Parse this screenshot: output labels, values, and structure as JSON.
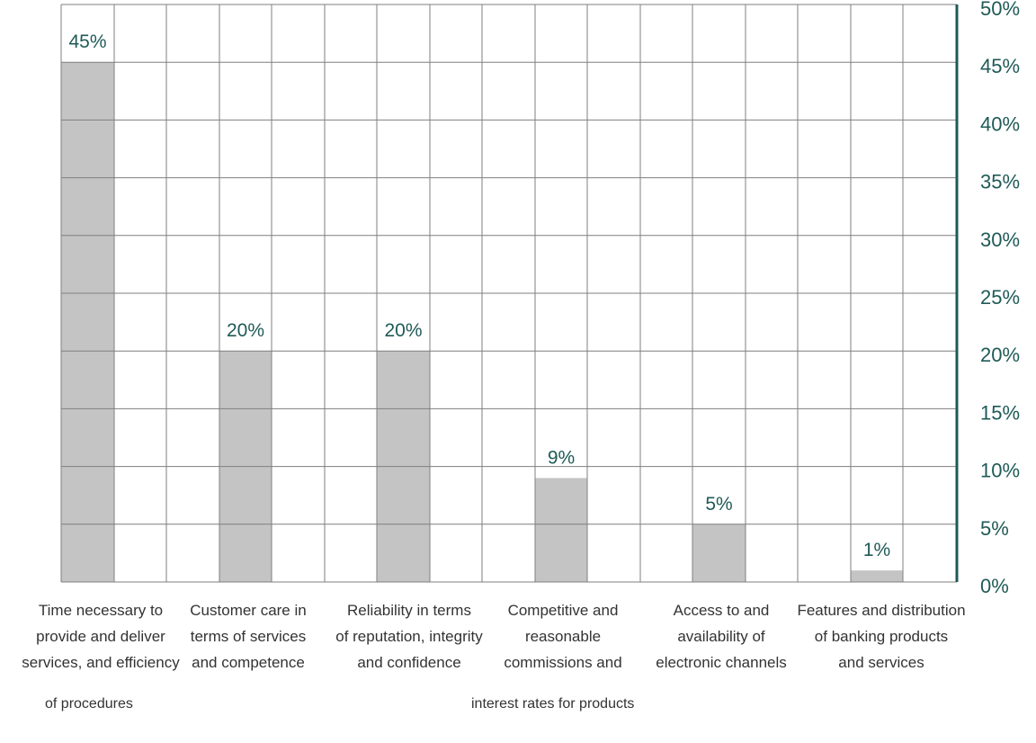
{
  "colors": {
    "bar": "#c4c4c4",
    "grid": "#7f7f7f",
    "axis": "#1f5a57",
    "text": "#1f5a57",
    "category_text": "#333333"
  },
  "chart_data": {
    "type": "bar",
    "categories": [
      "Time necessary to provide and deliver services, and efficiency",
      "Customer care in terms of services and competence",
      "Reliability in terms of reputation, integrity and confidence",
      "Competitive and reasonable commissions and",
      "Access to and availability of electronic channels",
      "Features and distribution of banking products and services"
    ],
    "values": [
      45,
      20,
      20,
      9,
      5,
      1
    ],
    "data_labels": [
      "45%",
      "20%",
      "20%",
      "9%",
      "5%",
      "1%"
    ],
    "ylim": [
      0,
      50
    ],
    "ytick_values": [
      0,
      5,
      10,
      15,
      20,
      25,
      30,
      35,
      40,
      45,
      50
    ],
    "ytick_labels": [
      "0%",
      "5%",
      "10%",
      "15%",
      "20%",
      "25%",
      "30%",
      "35%",
      "40%",
      "45%",
      "50%"
    ],
    "y_axis_side": "right",
    "grid": true,
    "legend": "none",
    "title": "",
    "xlabel": "",
    "ylabel": ""
  },
  "category_label_lines": [
    [
      "Time necessary to",
      "provide and deliver",
      "services, and efficiency"
    ],
    [
      "Customer care in",
      "terms of services",
      "and competence"
    ],
    [
      "Reliability in terms",
      "of reputation, integrity",
      "and confidence"
    ],
    [
      "Competitive and",
      "reasonable",
      "commissions and"
    ],
    [
      "Access to and",
      "availability of",
      "electronic channels"
    ],
    [
      "Features and distribution",
      "of banking products",
      "and services"
    ]
  ],
  "extra_labels": {
    "procedures": "of procedures",
    "interest": "interest rates for products"
  }
}
